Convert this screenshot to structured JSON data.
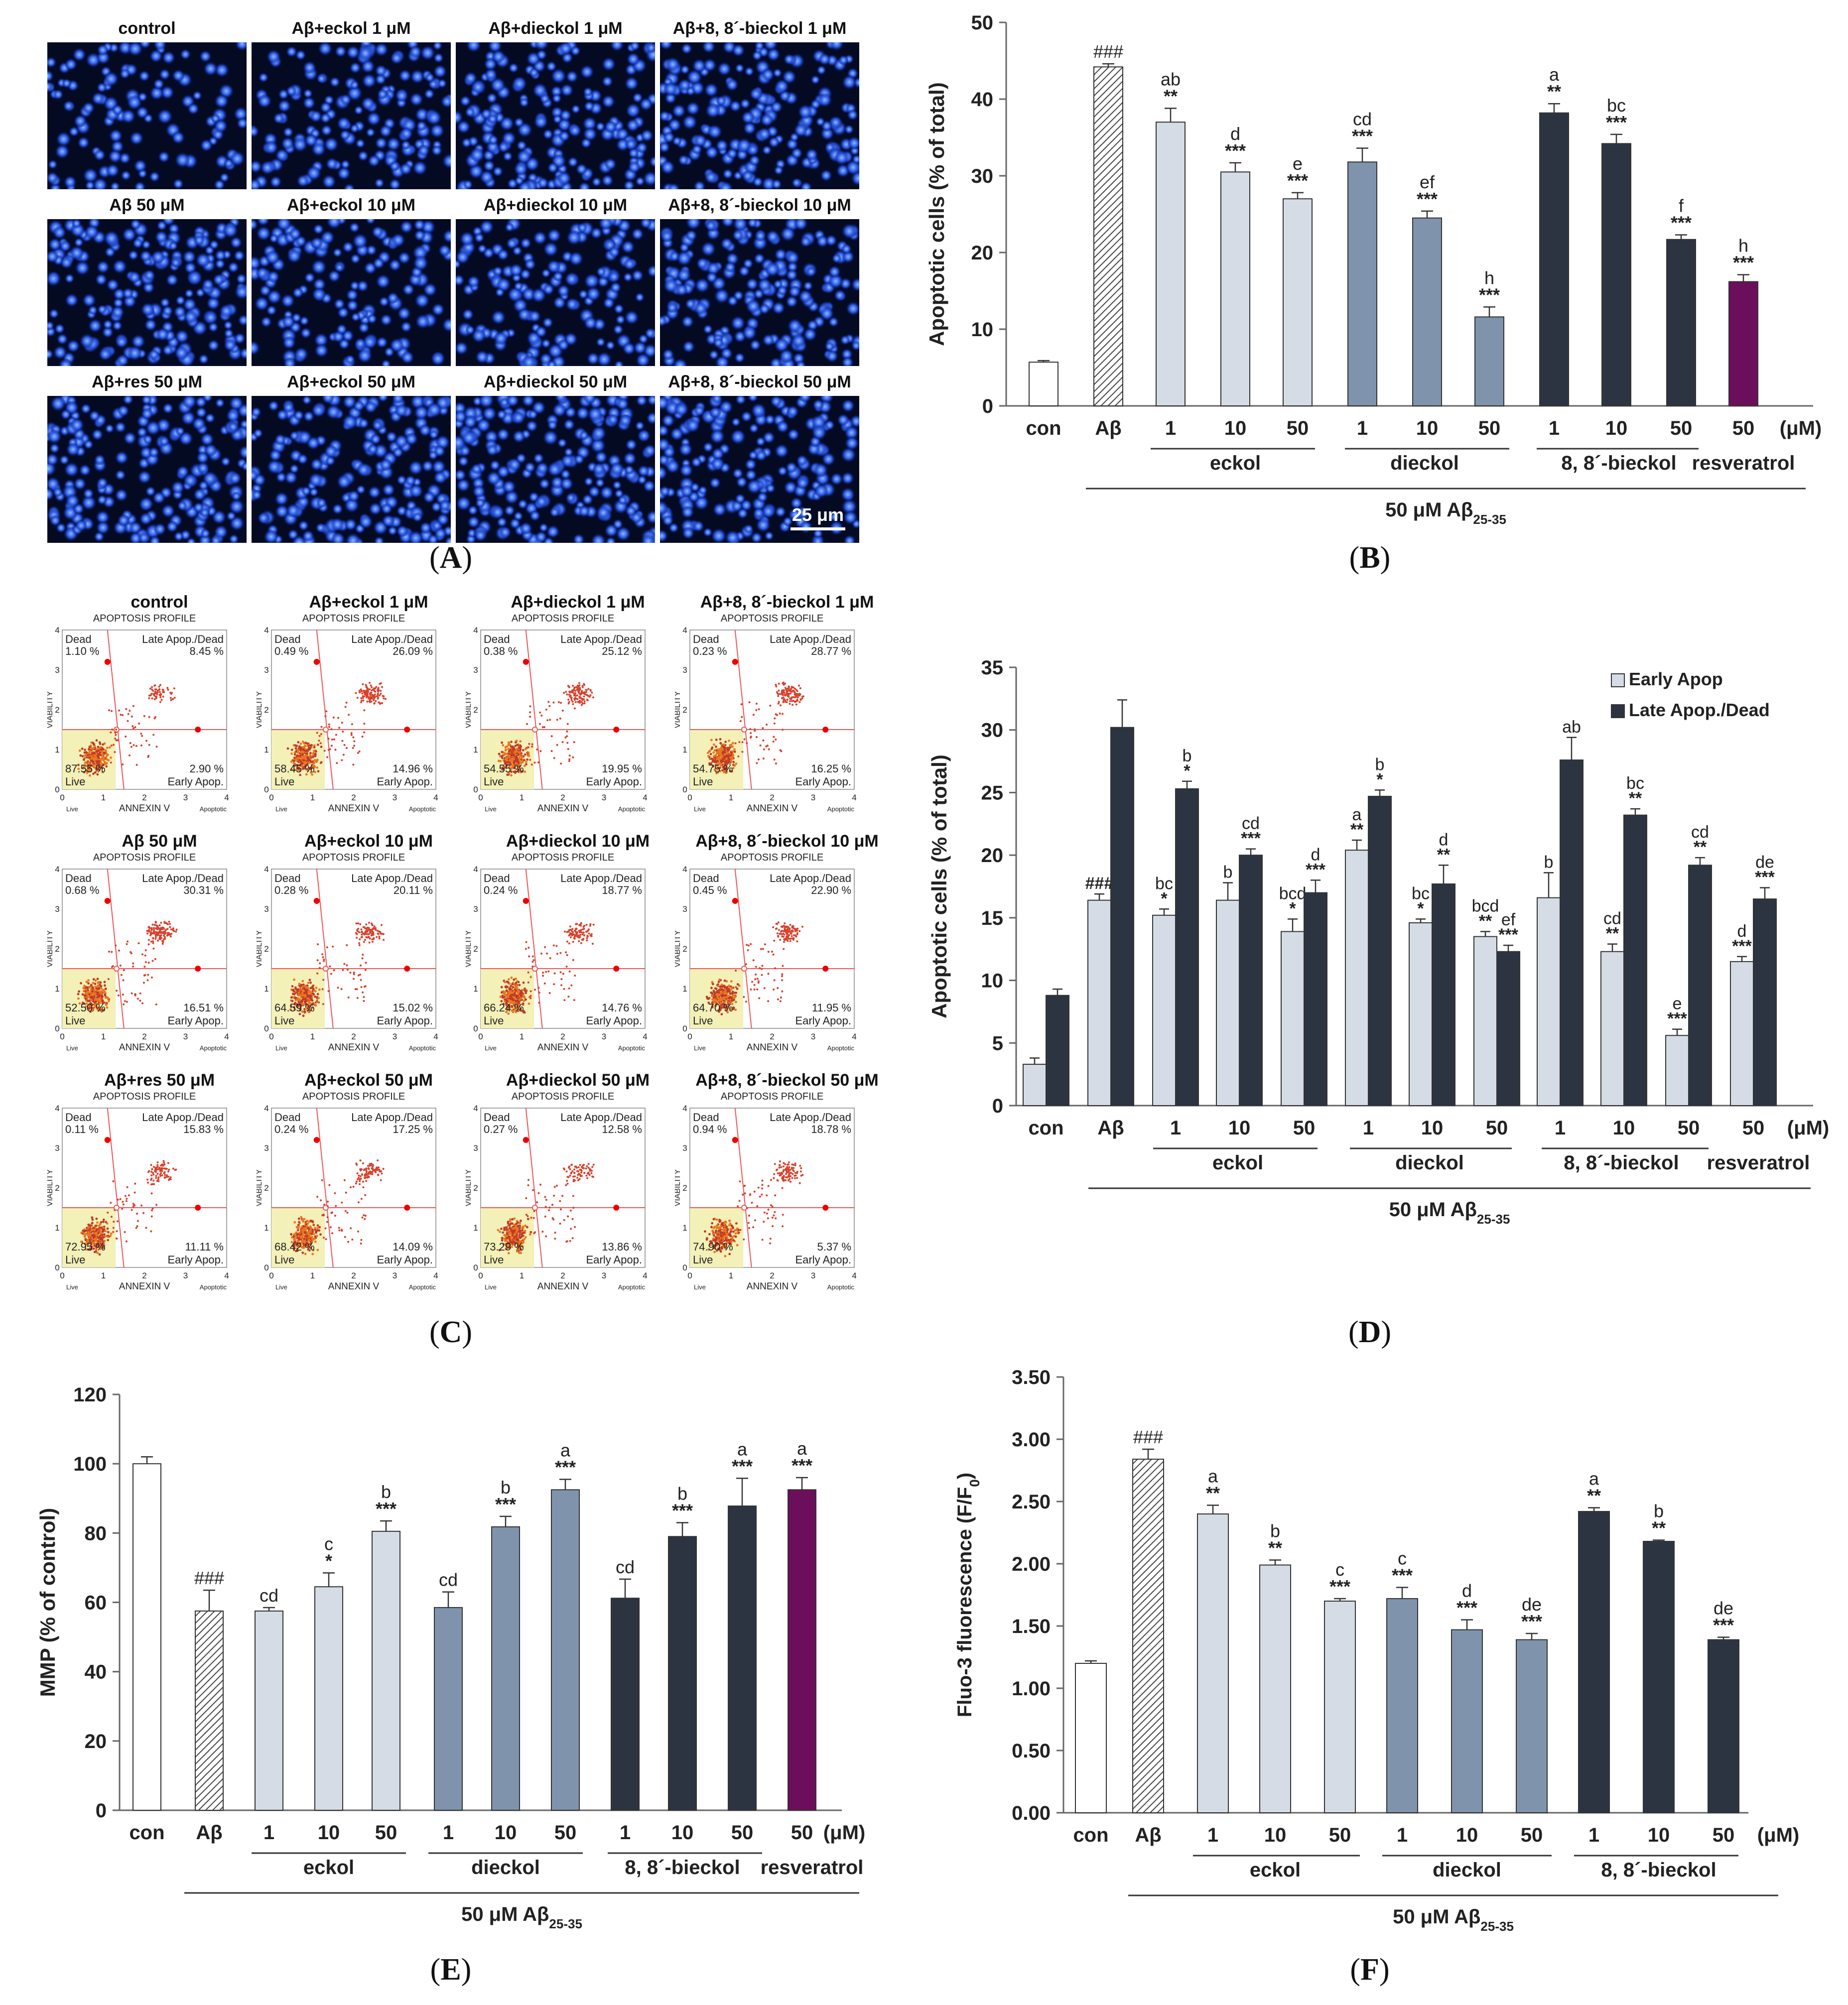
{
  "panel_labels": {
    "A": "A",
    "B": "B",
    "C": "C",
    "D": "D",
    "E": "E",
    "F": "F"
  },
  "micrographs": {
    "titles": [
      "control",
      "Aβ+eckol 1 μM",
      "Aβ+dieckol 1 μM",
      "Aβ+8, 8´-bieckol 1 μM",
      "Aβ 50 μM",
      "Aβ+eckol 10 μM",
      "Aβ+dieckol 10 μM",
      "Aβ+8, 8´-bieckol 10 μM",
      "Aβ+res 50 μM",
      "Aβ+eckol 50 μM",
      "Aβ+dieckol 50 μM",
      "Aβ+8, 8´-bieckol 50 μM"
    ],
    "density": [
      0.35,
      0.6,
      0.75,
      0.8,
      0.85,
      0.55,
      0.6,
      0.8,
      0.85,
      0.9,
      0.95,
      0.85
    ],
    "scale_bar": "25 μm"
  },
  "flow": {
    "profile_title": "APOPTOSIS PROFILE",
    "y_axis": "VIABILITY",
    "x_axis": "ANNEXIN V",
    "x_left": "Live",
    "x_right": "Apoptotic",
    "quad_labels": {
      "dead": "Dead",
      "late": "Late Apop./Dead",
      "live": "Live",
      "early": "Early Apop."
    },
    "ticks": [
      "0",
      "1",
      "2",
      "3",
      "4"
    ],
    "panels": [
      {
        "title": "control",
        "dead": "1.10 %",
        "late": "8.45 %",
        "live": "87.55 %",
        "early": "2.90 %"
      },
      {
        "title": "Aβ+eckol 1 μM",
        "dead": "0.49 %",
        "late": "26.09 %",
        "live": "58.45 %",
        "early": "14.96 %"
      },
      {
        "title": "Aβ+dieckol 1 μM",
        "dead": "0.38 %",
        "late": "25.12 %",
        "live": "54.55 %",
        "early": "19.95 %"
      },
      {
        "title": "Aβ+8, 8´-bieckol 1 μM",
        "dead": "0.23 %",
        "late": "28.77 %",
        "live": "54.75 %",
        "early": "16.25 %"
      },
      {
        "title": "Aβ 50 μM",
        "dead": "0.68 %",
        "late": "30.31 %",
        "live": "52.50 %",
        "early": "16.51 %"
      },
      {
        "title": "Aβ+eckol 10 μM",
        "dead": "0.28 %",
        "late": "20.11 %",
        "live": "64.59 %",
        "early": "15.02 %"
      },
      {
        "title": "Aβ+dieckol 10 μM",
        "dead": "0.24 %",
        "late": "18.77 %",
        "live": "66.24 %",
        "early": "14.76 %"
      },
      {
        "title": "Aβ+8, 8´-bieckol 10 μM",
        "dead": "0.45 %",
        "late": "22.90 %",
        "live": "64.70 %",
        "early": "11.95 %"
      },
      {
        "title": "Aβ+res 50 μM",
        "dead": "0.11 %",
        "late": "15.83 %",
        "live": "72.95 %",
        "early": "11.11 %"
      },
      {
        "title": "Aβ+eckol 50 μM",
        "dead": "0.24 %",
        "late": "17.25 %",
        "live": "68.42 %",
        "early": "14.09 %"
      },
      {
        "title": "Aβ+dieckol 50 μM",
        "dead": "0.27 %",
        "late": "12.58 %",
        "live": "73.29 %",
        "early": "13.86 %"
      },
      {
        "title": "Aβ+8, 8´-bieckol 50 μM",
        "dead": "0.94 %",
        "late": "18.78 %",
        "live": "74.90 %",
        "early": "5.37 %"
      }
    ]
  },
  "colors": {
    "white": "#ffffff",
    "light": "#d5dce6",
    "mid": "#7f93ad",
    "dark": "#2d3441",
    "purple": "#6b0f5c"
  },
  "chart_data": [
    {
      "id": "B",
      "type": "bar",
      "ylabel": "Apoptotic cells (% of  total)",
      "ylim": [
        0,
        50
      ],
      "yticks": [
        "0",
        "10",
        "20",
        "30",
        "40",
        "50"
      ],
      "categories": [
        "con",
        "Aβ",
        "1",
        "10",
        "50",
        "1",
        "10",
        "50",
        "1",
        "10",
        "50",
        "50"
      ],
      "unit_label": "(μM)",
      "values": [
        5.7,
        44.2,
        37.0,
        30.5,
        27.0,
        31.8,
        24.5,
        11.6,
        38.2,
        34.2,
        21.7,
        16.2
      ],
      "errors": [
        0.2,
        0.4,
        1.8,
        1.2,
        0.8,
        1.8,
        0.9,
        1.3,
        1.2,
        1.2,
        0.6,
        0.9
      ],
      "fills": [
        "white",
        "hatch",
        "light",
        "light",
        "light",
        "mid",
        "mid",
        "mid",
        "dark",
        "dark",
        "dark",
        "purple"
      ],
      "letters": [
        "",
        "",
        "ab",
        "d",
        "e",
        "cd",
        "ef",
        "h",
        "a",
        "bc",
        "f",
        "h"
      ],
      "stars": [
        "",
        "###",
        "**",
        "***",
        "***",
        "***",
        "***",
        "***",
        "**",
        "***",
        "***",
        "***"
      ],
      "groups": [
        "eckol",
        "dieckol",
        "8, 8´-bieckol",
        "resveratrol"
      ],
      "footer": "50 μM Aβ",
      "footer_sub": "25-35"
    },
    {
      "id": "D",
      "type": "grouped-bar",
      "ylabel": "Apoptotic cells (% of  total)",
      "ylim": [
        0,
        35
      ],
      "yticks": [
        "0",
        "5",
        "10",
        "15",
        "20",
        "25",
        "30",
        "35"
      ],
      "categories": [
        "con",
        "Aβ",
        "1",
        "10",
        "50",
        "1",
        "10",
        "50",
        "1",
        "10",
        "50",
        "50"
      ],
      "unit_label": "(μM)",
      "series": [
        {
          "name": "Early Apop",
          "values": [
            3.3,
            16.4,
            15.2,
            16.4,
            13.9,
            20.4,
            14.6,
            13.5,
            16.6,
            12.3,
            5.6,
            11.5
          ],
          "errors": [
            0.5,
            0.5,
            0.5,
            1.4,
            1.0,
            0.8,
            0.3,
            0.4,
            2.0,
            0.6,
            0.5,
            0.4
          ],
          "letters": [
            "",
            "",
            "bc",
            "b",
            "bcd",
            "a",
            "bc",
            "bcd",
            "b",
            "cd",
            "e",
            "d"
          ],
          "stars": [
            "",
            "###",
            "*",
            "",
            "*",
            "**",
            "*",
            "**",
            "",
            "**",
            "***",
            "***"
          ]
        },
        {
          "name": "Late Apop./Dead",
          "values": [
            8.8,
            30.2,
            25.3,
            20.0,
            17.0,
            24.7,
            17.7,
            12.3,
            27.6,
            23.2,
            19.2,
            16.5
          ],
          "errors": [
            0.5,
            2.2,
            0.6,
            0.5,
            1.0,
            0.5,
            1.5,
            0.5,
            1.8,
            0.5,
            0.6,
            0.9
          ],
          "letters": [
            "",
            "",
            "b",
            "cd",
            "d",
            "b",
            "d",
            "ef",
            "ab",
            "bc",
            "cd",
            "de"
          ],
          "stars": [
            "",
            "",
            "*",
            "***",
            "***",
            "*",
            "**",
            "***",
            "",
            "**",
            "**",
            "***"
          ]
        }
      ],
      "groups": [
        "eckol",
        "dieckol",
        "8, 8´-bieckol",
        "resveratrol"
      ],
      "footer": "50 μM Aβ",
      "footer_sub": "25-35"
    },
    {
      "id": "E",
      "type": "bar",
      "ylabel": "MMP (% of  control)",
      "ylim": [
        0,
        120
      ],
      "yticks": [
        "0",
        "20",
        "40",
        "60",
        "80",
        "100",
        "120"
      ],
      "categories": [
        "con",
        "Aβ",
        "1",
        "10",
        "50",
        "1",
        "10",
        "50",
        "1",
        "10",
        "50",
        "50"
      ],
      "unit_label": "(μM)",
      "values": [
        100,
        57.5,
        57.5,
        64.5,
        80.5,
        58.5,
        81.8,
        92.5,
        61.2,
        79.0,
        87.8,
        92.5
      ],
      "errors": [
        2.0,
        6.0,
        1.0,
        4.0,
        3.0,
        4.5,
        3.0,
        3.0,
        5.5,
        4.0,
        8.0,
        3.5
      ],
      "fills": [
        "white",
        "hatch",
        "light",
        "light",
        "light",
        "mid",
        "mid",
        "mid",
        "dark",
        "dark",
        "dark",
        "purple"
      ],
      "letters": [
        "",
        "",
        "cd",
        "c",
        "b",
        "cd",
        "b",
        "a",
        "cd",
        "b",
        "a",
        "a"
      ],
      "stars": [
        "",
        "###",
        "",
        "*",
        "***",
        "",
        "***",
        "***",
        "",
        "***",
        "***",
        "***"
      ],
      "groups": [
        "eckol",
        "dieckol",
        "8, 8´-bieckol",
        "resveratrol"
      ],
      "footer": "50 μM Aβ",
      "footer_sub": "25-35"
    },
    {
      "id": "F",
      "type": "bar",
      "ylabel": "Fluo-3 fluorescence (F/F",
      "ylabel_sub": "0",
      "ylabel_end": ")",
      "ylim": [
        0,
        3.5
      ],
      "yticks": [
        "0.00",
        "0.50",
        "1.00",
        "1.50",
        "2.00",
        "2.50",
        "3.00",
        "3.50"
      ],
      "categories": [
        "con",
        "Aβ",
        "1",
        "10",
        "50",
        "1",
        "10",
        "50",
        "1",
        "10",
        "50"
      ],
      "unit_label": "(μM)",
      "values": [
        1.2,
        2.84,
        2.4,
        1.99,
        1.7,
        1.72,
        1.47,
        1.39,
        2.42,
        2.18,
        1.39
      ],
      "errors": [
        0.02,
        0.08,
        0.07,
        0.04,
        0.02,
        0.09,
        0.08,
        0.05,
        0.03,
        0.01,
        0.02
      ],
      "fills": [
        "white",
        "hatch",
        "light",
        "light",
        "light",
        "mid",
        "mid",
        "mid",
        "dark",
        "dark",
        "dark"
      ],
      "letters": [
        "",
        "",
        "a",
        "b",
        "c",
        "c",
        "d",
        "de",
        "a",
        "b",
        "de"
      ],
      "stars": [
        "",
        "###",
        "**",
        "**",
        "***",
        "***",
        "***",
        "***",
        "**",
        "**",
        "***"
      ],
      "groups": [
        "eckol",
        "dieckol",
        "8, 8´-bieckol"
      ],
      "footer": "50 μM Aβ",
      "footer_sub": "25-35"
    }
  ]
}
